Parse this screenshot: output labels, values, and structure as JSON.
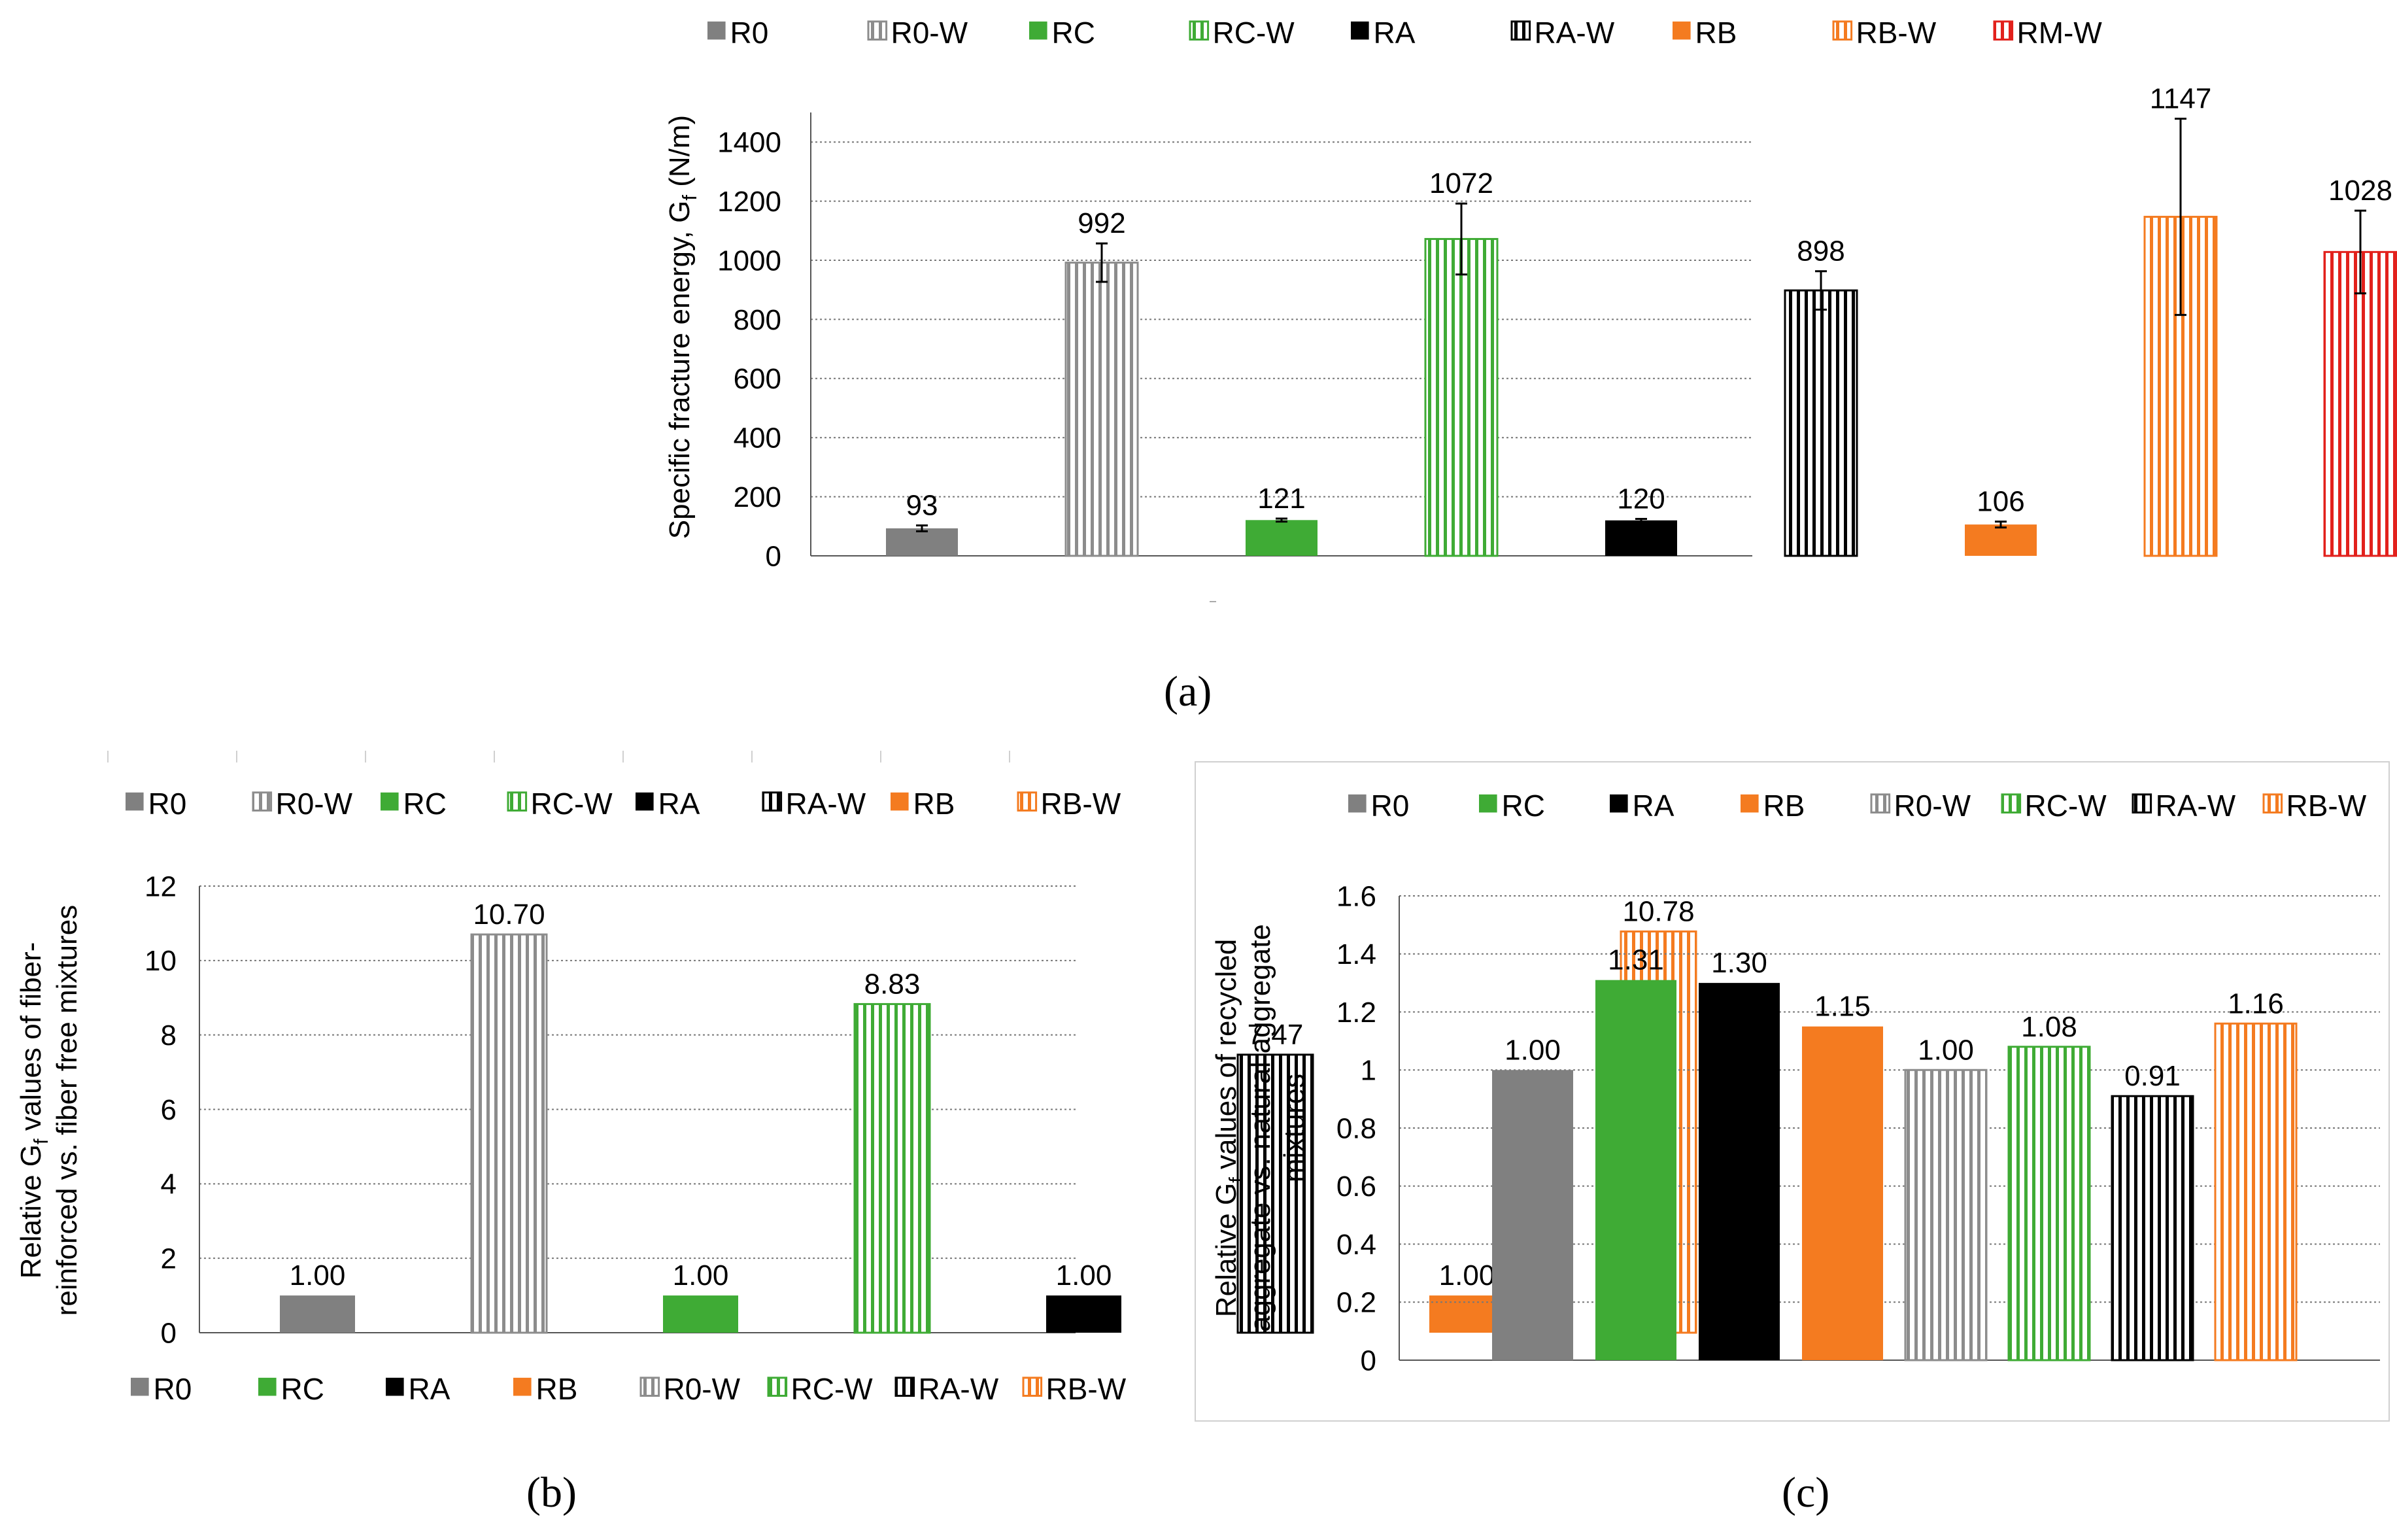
{
  "colors": {
    "R0": "#808080",
    "R0-W": "#8c8c8c",
    "RC": "#3fab35",
    "RC-W": "#3fab35",
    "RA": "#000000",
    "RA-W": "#000000",
    "RB": "#f47b20",
    "RB-W": "#f47b20",
    "RM-W": "#e2211c",
    "grid": "#777777",
    "axis": "#555555",
    "panel_border": "#d0d0d0"
  },
  "captions": {
    "a": "(a)",
    "b": "(b)",
    "c": "(c)"
  },
  "chart_data": [
    {
      "id": "a",
      "type": "bar",
      "title": "",
      "xlabel": "",
      "ylabel_parts": [
        "Specific fracture energy, G",
        "f",
        " (N/m)"
      ],
      "ylim": [
        0,
        1500
      ],
      "yticks": [
        0,
        200,
        400,
        600,
        800,
        1000,
        1200,
        1400
      ],
      "grid": true,
      "legend": {
        "position": "top",
        "entries": [
          "R0",
          "R0-W",
          "RC",
          "RC-W",
          "RA",
          "RA-W",
          "RB",
          "RB-W",
          "RM-W"
        ]
      },
      "bars": [
        {
          "name": "R0",
          "value": 93,
          "label": "93",
          "err": 10,
          "pattern": "solid"
        },
        {
          "name": "R0-W",
          "value": 992,
          "label": "992",
          "err": 65,
          "pattern": "stripe"
        },
        {
          "name": "RC",
          "value": 121,
          "label": "121",
          "err": 5,
          "pattern": "solid"
        },
        {
          "name": "RC-W",
          "value": 1072,
          "label": "1072",
          "err": 120,
          "pattern": "stripe"
        },
        {
          "name": "RA",
          "value": 120,
          "label": "120",
          "err": 5,
          "pattern": "solid"
        },
        {
          "name": "RA-W",
          "value": 898,
          "label": "898",
          "err": 65,
          "pattern": "stripe"
        },
        {
          "name": "RB",
          "value": 106,
          "label": "106",
          "err": 10,
          "pattern": "solid"
        },
        {
          "name": "RB-W",
          "value": 1147,
          "label": "1147",
          "err": 332,
          "pattern": "stripe"
        },
        {
          "name": "RM-W",
          "value": 1028,
          "label": "1028",
          "err": 140,
          "pattern": "stripe"
        }
      ]
    },
    {
      "id": "b",
      "type": "bar",
      "title": "",
      "xlabel": "",
      "ylabel_lines": [
        [
          "Relative G",
          "f",
          " values of fiber-"
        ],
        [
          "reinforced vs. fiber free mixtures",
          "",
          ""
        ]
      ],
      "ylim": [
        0,
        12
      ],
      "yticks": [
        0,
        2,
        4,
        6,
        8,
        10,
        12
      ],
      "grid": true,
      "legend_top": {
        "position": "top",
        "entries": [
          "R0",
          "R0-W",
          "RC",
          "RC-W",
          "RA",
          "RA-W",
          "RB",
          "RB-W"
        ]
      },
      "legend_bottom": {
        "position": "bottom",
        "entries": [
          "R0",
          "RC",
          "RA",
          "RB",
          "R0-W",
          "RC-W",
          "RA-W",
          "RB-W"
        ]
      },
      "bars": [
        {
          "name": "R0",
          "value": 1.0,
          "label": "1.00",
          "pattern": "solid"
        },
        {
          "name": "R0-W",
          "value": 10.7,
          "label": "10.70",
          "pattern": "stripe"
        },
        {
          "name": "RC",
          "value": 1.0,
          "label": "1.00",
          "pattern": "solid"
        },
        {
          "name": "RC-W",
          "value": 8.83,
          "label": "8.83",
          "pattern": "stripe"
        },
        {
          "name": "RA",
          "value": 1.0,
          "label": "1.00",
          "pattern": "solid"
        },
        {
          "name": "RA-W",
          "value": 7.47,
          "label": "7.47",
          "pattern": "stripe"
        },
        {
          "name": "RB",
          "value": 1.0,
          "label": "1.00",
          "pattern": "solid"
        },
        {
          "name": "RB-W",
          "value": 10.78,
          "label": "10.78",
          "pattern": "stripe"
        }
      ]
    },
    {
      "id": "c",
      "type": "bar",
      "title": "",
      "xlabel": "",
      "ylabel_lines": [
        [
          "Relative G",
          "f",
          " values of recycled"
        ],
        [
          "aggregate  vs. natural aggregate",
          "",
          ""
        ],
        [
          "mixtures",
          "",
          ""
        ]
      ],
      "ylim": [
        0,
        1.6
      ],
      "yticks": [
        "0",
        "0.2",
        "0.4",
        "0.6",
        "0.8",
        "1",
        "1.2",
        "1.4",
        "1.6"
      ],
      "grid": true,
      "legend": {
        "position": "top",
        "entries": [
          "R0",
          "RC",
          "RA",
          "RB",
          "R0-W",
          "RC-W",
          "RA-W",
          "RB-W"
        ]
      },
      "bars": [
        {
          "name": "R0",
          "value": 1.0,
          "label": "1.00",
          "pattern": "solid"
        },
        {
          "name": "RC",
          "value": 1.31,
          "label": "1.31",
          "pattern": "solid"
        },
        {
          "name": "RA",
          "value": 1.3,
          "label": "1.30",
          "pattern": "solid"
        },
        {
          "name": "RB",
          "value": 1.15,
          "label": "1.15",
          "pattern": "solid"
        },
        {
          "name": "R0-W",
          "value": 1.0,
          "label": "1.00",
          "pattern": "stripe"
        },
        {
          "name": "RC-W",
          "value": 1.08,
          "label": "1.08",
          "pattern": "stripe"
        },
        {
          "name": "RA-W",
          "value": 0.91,
          "label": "0.91",
          "pattern": "stripe"
        },
        {
          "name": "RB-W",
          "value": 1.16,
          "label": "1.16",
          "pattern": "stripe"
        }
      ]
    }
  ]
}
